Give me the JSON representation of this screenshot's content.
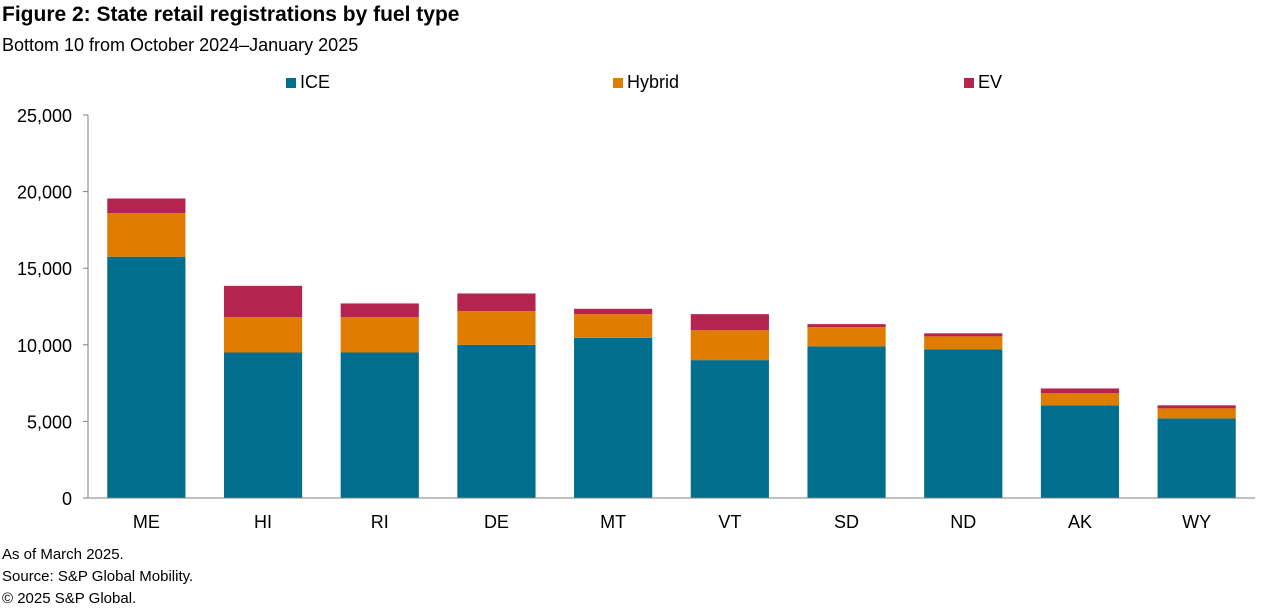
{
  "chart_data": {
    "type": "bar",
    "stacked": true,
    "title": "Figure 2: State retail registrations by fuel type",
    "subtitle": "Bottom 10 from October 2024–January 2025",
    "categories": [
      "ME",
      "HI",
      "RI",
      "DE",
      "MT",
      "VT",
      "SD",
      "ND",
      "AK",
      "WY"
    ],
    "series": [
      {
        "name": "ICE",
        "color": "#006E8C",
        "values": [
          15750,
          9500,
          9500,
          10000,
          10450,
          9000,
          9900,
          9700,
          6050,
          5200
        ]
      },
      {
        "name": "Hybrid",
        "color": "#E07C00",
        "values": [
          2850,
          2300,
          2300,
          2200,
          1550,
          1950,
          1250,
          850,
          800,
          650
        ]
      },
      {
        "name": "EV",
        "color": "#B5244F",
        "values": [
          950,
          2050,
          900,
          1150,
          350,
          1050,
          200,
          200,
          300,
          200
        ]
      }
    ],
    "ylim": [
      0,
      25000
    ],
    "yticks": [
      0,
      5000,
      10000,
      15000,
      20000,
      25000
    ],
    "ytick_labels": [
      "0",
      "5,000",
      "10,000",
      "15,000",
      "20,000",
      "25,000"
    ],
    "legend_position": "top",
    "grid": false,
    "xlabel": "",
    "ylabel": ""
  },
  "notes": {
    "as_of": "As of March 2025.",
    "source": "Source: S&P Global Mobility.",
    "copyright": "© 2025 S&P Global."
  }
}
